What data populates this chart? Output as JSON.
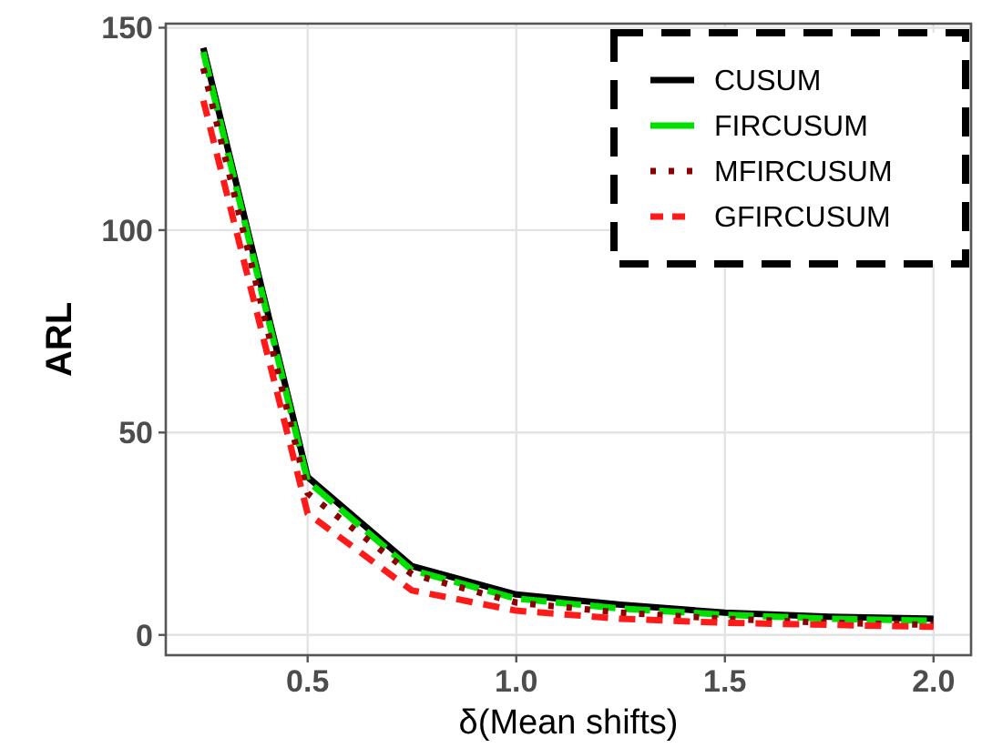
{
  "chart_data": {
    "type": "line",
    "xlabel": "δ(Mean shifts)",
    "ylabel": "ARL",
    "x": [
      0.25,
      0.5,
      0.75,
      1.0,
      1.25,
      1.5,
      1.75,
      2.0
    ],
    "xlim": [
      0.16,
      2.09
    ],
    "ylim": [
      -5,
      151
    ],
    "xticks": [
      0.5,
      {
        "value": 1,
        "label": "1.0"
      },
      1.5,
      {
        "value": 2,
        "label": "2.0"
      }
    ],
    "yticks": [
      0,
      50,
      100,
      150
    ],
    "grid": true,
    "legend": "top right",
    "marker": "none",
    "series": [
      {
        "name": "CUSUM",
        "color": "#000000",
        "line_style": "solid",
        "values": [
          145,
          39,
          17,
          10,
          7.5,
          5.5,
          4.5,
          4
        ]
      },
      {
        "name": "FIRCUSUM",
        "color": "#00e000",
        "line_style": "longdash",
        "values": [
          144,
          38,
          16,
          9,
          6.5,
          5,
          4,
          3.5
        ]
      },
      {
        "name": "MFIRCUSUM",
        "color": "#8b0000",
        "line_style": "dotted",
        "values": [
          140,
          35,
          15,
          8,
          5.5,
          4,
          3,
          2.5
        ]
      },
      {
        "name": "GFIRCUSUM",
        "color": "#ff1a1a",
        "line_style": "dashed",
        "values": [
          132,
          30,
          11,
          6,
          4,
          3,
          2.5,
          2
        ]
      }
    ]
  }
}
